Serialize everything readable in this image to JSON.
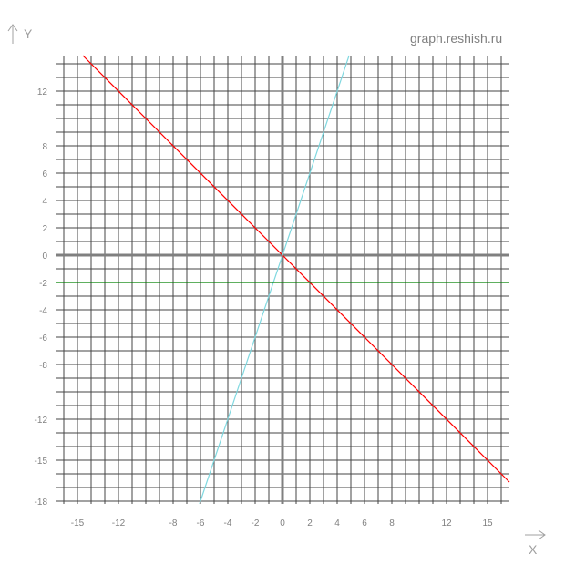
{
  "watermark": "graph.reshish.ru",
  "chart_data": {
    "type": "line",
    "title": "",
    "xlabel": "X",
    "ylabel": "Y",
    "xlim": [
      -16.6,
      16.6
    ],
    "ylim": [
      -18.2,
      14.6
    ],
    "grid": true,
    "x_tick_labels": [
      {
        "value": -15,
        "label": "-15"
      },
      {
        "value": -12,
        "label": "-12"
      },
      {
        "value": -8,
        "label": "-8"
      },
      {
        "value": -6,
        "label": "-6"
      },
      {
        "value": -4,
        "label": "-4"
      },
      {
        "value": -2,
        "label": "-2"
      },
      {
        "value": 0,
        "label": "0"
      },
      {
        "value": 2,
        "label": "2"
      },
      {
        "value": 4,
        "label": "4"
      },
      {
        "value": 6,
        "label": "6"
      },
      {
        "value": 8,
        "label": "8"
      },
      {
        "value": 12,
        "label": "12"
      },
      {
        "value": 15,
        "label": "15"
      }
    ],
    "y_tick_labels": [
      {
        "value": 12,
        "label": "12"
      },
      {
        "value": 8,
        "label": "8"
      },
      {
        "value": 6,
        "label": "6"
      },
      {
        "value": 4,
        "label": "4"
      },
      {
        "value": 2,
        "label": "2"
      },
      {
        "value": 0,
        "label": "0"
      },
      {
        "value": -2,
        "label": "-2"
      },
      {
        "value": -4,
        "label": "-4"
      },
      {
        "value": -6,
        "label": "-6"
      },
      {
        "value": -8,
        "label": "-8"
      },
      {
        "value": -12,
        "label": "-12"
      },
      {
        "value": -15,
        "label": "-15"
      },
      {
        "value": -18,
        "label": "-18"
      }
    ],
    "series": [
      {
        "color": "#ff0000",
        "x": [
          -14.6,
          16.6
        ],
        "y": [
          14.6,
          -16.6
        ]
      },
      {
        "color": "#7fd8e0",
        "x": [
          -6.07,
          4.87
        ],
        "y": [
          -18.2,
          14.6
        ]
      },
      {
        "color": "#008000",
        "x": [
          -16.6,
          16.6
        ],
        "y": [
          -2,
          -2
        ]
      }
    ]
  }
}
